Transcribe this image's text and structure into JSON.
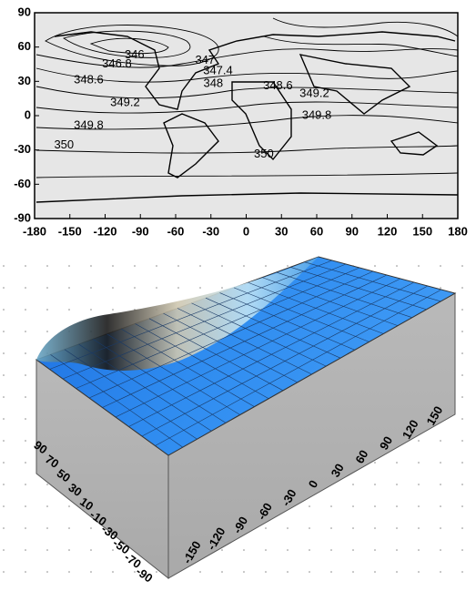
{
  "chart_data": [
    {
      "type": "contour",
      "xlim": [
        -180,
        180
      ],
      "ylim": [
        -90,
        90
      ],
      "xticks": [
        -180,
        -150,
        -120,
        -90,
        -60,
        -30,
        0,
        30,
        60,
        90,
        120,
        150,
        180
      ],
      "yticks": [
        90,
        60,
        30,
        0,
        -30,
        -60,
        -90
      ],
      "contour_labels": [
        {
          "value": 346,
          "lon": -95,
          "lat": 53
        },
        {
          "value": 346.8,
          "lon": -110,
          "lat": 45
        },
        {
          "value": 347,
          "lon": -35,
          "lat": 48
        },
        {
          "value": 347.4,
          "lon": -24,
          "lat": 39
        },
        {
          "value": 348,
          "lon": -28,
          "lat": 28
        },
        {
          "value": 348.6,
          "lon": -134,
          "lat": 31
        },
        {
          "value": 349.2,
          "lon": -103,
          "lat": 11
        },
        {
          "value": 348.6,
          "lon": 27,
          "lat": 26
        },
        {
          "value": 349.2,
          "lon": 58,
          "lat": 19
        },
        {
          "value": 349.8,
          "lon": -134,
          "lat": -9
        },
        {
          "value": 349.8,
          "lon": 60,
          "lat": 0
        },
        {
          "value": 350,
          "lon": -155,
          "lat": -26
        },
        {
          "value": 350,
          "lon": 15,
          "lat": -34
        }
      ]
    },
    {
      "type": "surface",
      "xlim": [
        -180,
        180
      ],
      "ylim": [
        90,
        -90
      ],
      "xticks": [
        -150,
        -120,
        -90,
        -60,
        -30,
        0,
        30,
        60,
        90,
        120,
        150
      ],
      "yticks": [
        90,
        70,
        50,
        30,
        10,
        -10,
        -30,
        -50,
        -70,
        -90
      ],
      "color": "#2f8cf0"
    }
  ]
}
